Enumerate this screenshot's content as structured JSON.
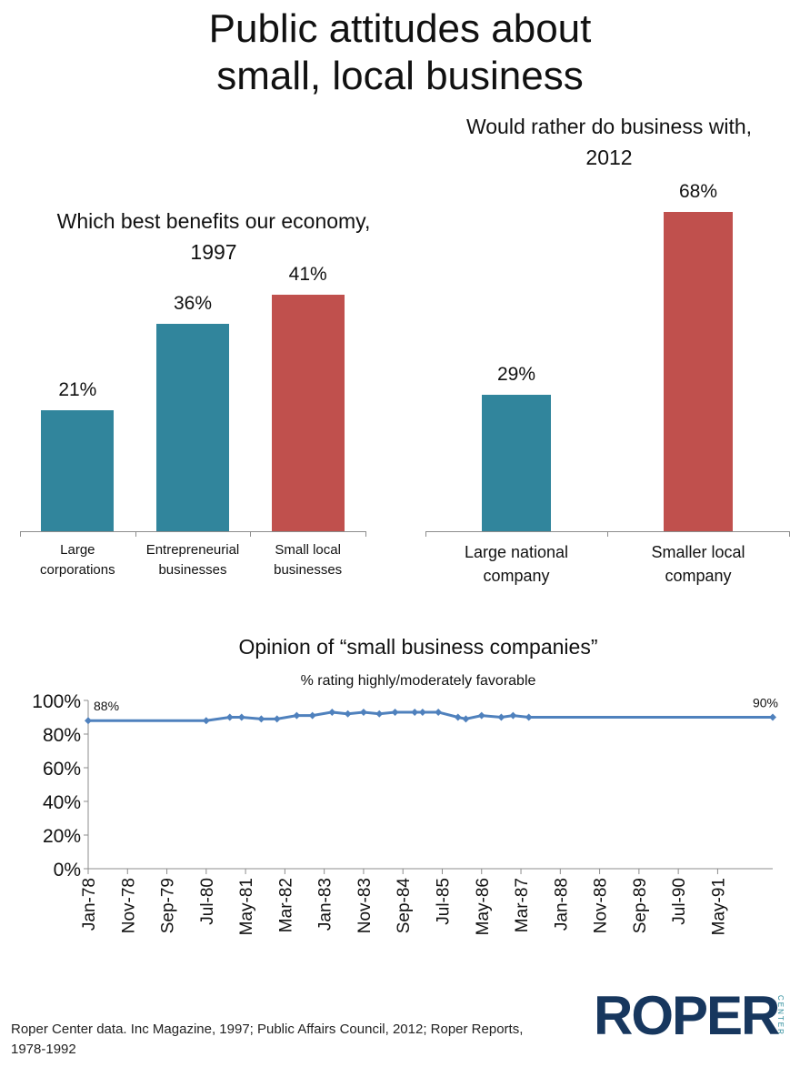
{
  "main_title_line1": "Public attitudes about",
  "main_title_line2": "small, local business",
  "colors": {
    "teal": "#31859c",
    "red": "#c0504d",
    "line": "#4f81bd",
    "logo": "#17375e"
  },
  "source_text": "Roper Center data. Inc Magazine, 1997; Public Affairs Council, 2012; Roper Reports, 1978-1992",
  "logo": {
    "text": "ROPER",
    "sub": "CENTER"
  },
  "chart_data": [
    {
      "type": "bar",
      "title_line1": "Which best benefits our economy,",
      "title_line2": "1997",
      "categories": [
        [
          "Large",
          "corporations"
        ],
        [
          "Entrepreneurial",
          "businesses"
        ],
        [
          "Small local",
          "businesses"
        ]
      ],
      "values": [
        21,
        36,
        41
      ],
      "value_labels": [
        "21%",
        "36%",
        "41%"
      ],
      "bar_colors": [
        "#31859c",
        "#31859c",
        "#c0504d"
      ],
      "ylim": [
        0,
        41
      ]
    },
    {
      "type": "bar",
      "title_line1": "Would rather do business with,",
      "title_line2": "2012",
      "categories": [
        [
          "Large national",
          "company"
        ],
        [
          "Smaller local",
          "company"
        ]
      ],
      "values": [
        29,
        68
      ],
      "value_labels": [
        "29%",
        "68%"
      ],
      "bar_colors": [
        "#31859c",
        "#c0504d"
      ],
      "ylim": [
        0,
        68
      ]
    },
    {
      "type": "line",
      "title": "Opinion of “small business companies”",
      "subtitle": "% rating highly/moderately favorable",
      "ylim": [
        0,
        100
      ],
      "y_ticks": [
        "0%",
        "20%",
        "40%",
        "60%",
        "80%",
        "100%"
      ],
      "x_ticks": [
        "Jan-78",
        "Nov-78",
        "Sep-79",
        "Jul-80",
        "May-81",
        "Mar-82",
        "Jan-83",
        "Nov-83",
        "Sep-84",
        "Jul-85",
        "May-86",
        "Mar-87",
        "Jan-88",
        "Nov-88",
        "Sep-89",
        "Jul-90",
        "May-91"
      ],
      "grid": false,
      "series": [
        {
          "x": [
            "Jan-78",
            "Jul-80",
            "Jan-81",
            "Apr-81",
            "Sep-81",
            "Jan-82",
            "Jun-82",
            "Oct-82",
            "Mar-83",
            "Jul-83",
            "Nov-83",
            "Mar-84",
            "Jul-84",
            "Dec-84",
            "Feb-85",
            "Jun-85",
            "Nov-85",
            "Jan-86",
            "May-86",
            "Oct-86",
            "Jan-87",
            "May-87",
            "Jul-92"
          ],
          "y": [
            88,
            88,
            90,
            90,
            89,
            89,
            91,
            91,
            93,
            92,
            93,
            92,
            93,
            93,
            93,
            93,
            90,
            89,
            91,
            90,
            91,
            90,
            90
          ],
          "labels": [
            "88%",
            "",
            "",
            "",
            "",
            "",
            "",
            "",
            "",
            "",
            "",
            "",
            "",
            "",
            "",
            "",
            "",
            "",
            "",
            "",
            "",
            "",
            "90%"
          ]
        }
      ]
    }
  ]
}
